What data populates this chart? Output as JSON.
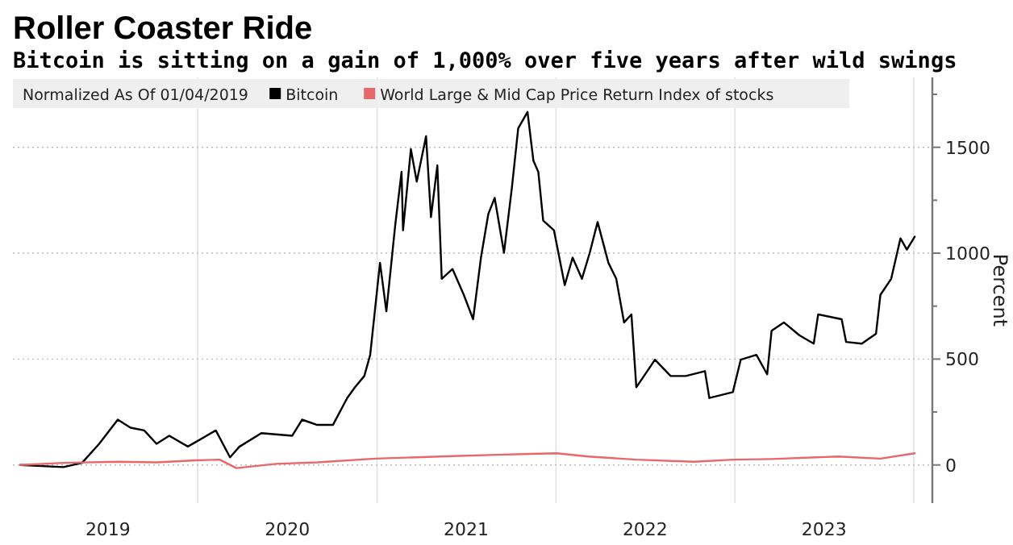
{
  "chart_data": {
    "type": "line",
    "title": "Roller Coaster Ride",
    "subtitle": "Bitcoin is sitting on a gain of 1,000% over five years after wild swings",
    "ylabel": "Percent",
    "legend_title": "Normalized As Of 01/04/2019",
    "legend": "top",
    "grid": true,
    "marker": "none",
    "line_style": "solid",
    "xlim": [
      "2018-12-20",
      "2024-02-08"
    ],
    "xticks": [
      {
        "value": "2019-07-02",
        "label": "2019"
      },
      {
        "value": "2020-07-02",
        "label": "2020"
      },
      {
        "value": "2021-07-02",
        "label": "2021"
      },
      {
        "value": "2022-07-02",
        "label": "2022"
      },
      {
        "value": "2023-07-02",
        "label": "2023"
      },
      {
        "value": "2020-01-01",
        "label": null
      },
      {
        "value": "2021-01-01",
        "label": null
      },
      {
        "value": "2022-01-01",
        "label": null
      },
      {
        "value": "2023-01-01",
        "label": null
      },
      {
        "value": "2024-01-01",
        "label": null
      }
    ],
    "ylim": [
      -180,
      1830
    ],
    "yticks": [
      0,
      500,
      1000,
      1500,
      {
        "value": 250,
        "label": null
      },
      {
        "value": 750,
        "label": null
      },
      {
        "value": 1250,
        "label": null
      },
      {
        "value": 1750,
        "label": null
      }
    ],
    "series": [
      {
        "name": "Bitcoin",
        "color": "#000000",
        "x": [
          "2019-01-04",
          "2019-04-02",
          "2019-05-10",
          "2019-06-14",
          "2019-07-22",
          "2019-08-17",
          "2019-09-14",
          "2019-10-09",
          "2019-11-04",
          "2019-12-12",
          "2020-02-07",
          "2020-03-07",
          "2020-03-26",
          "2020-05-10",
          "2020-07-12",
          "2020-08-01",
          "2020-09-01",
          "2020-10-03",
          "2020-11-01",
          "2020-11-17",
          "2020-12-06",
          "2020-12-18",
          "2021-01-07",
          "2021-01-20",
          "2021-02-07",
          "2021-02-20",
          "2021-02-23",
          "2021-03-11",
          "2021-03-23",
          "2021-04-11",
          "2021-04-21",
          "2021-05-04",
          "2021-05-13",
          "2021-06-04",
          "2021-06-27",
          "2021-07-16",
          "2021-08-01",
          "2021-08-16",
          "2021-08-29",
          "2021-09-17",
          "2021-10-03",
          "2021-10-16",
          "2021-11-04",
          "2021-11-16",
          "2021-11-26",
          "2021-12-06",
          "2021-12-28",
          "2022-01-19",
          "2022-02-04",
          "2022-02-23",
          "2022-03-11",
          "2022-03-27",
          "2022-04-18",
          "2022-05-04",
          "2022-05-20",
          "2022-06-04",
          "2022-06-14",
          "2022-07-13",
          "2022-07-22",
          "2022-08-23",
          "2022-09-23",
          "2022-11-01",
          "2022-11-10",
          "2022-12-28",
          "2023-01-13",
          "2023-02-14",
          "2023-03-08",
          "2023-03-17",
          "2023-04-11",
          "2023-05-13",
          "2023-06-11",
          "2023-06-20",
          "2023-08-07",
          "2023-08-16",
          "2023-09-17",
          "2023-10-16",
          "2023-10-25",
          "2023-11-16",
          "2023-12-05",
          "2023-12-18",
          "2024-01-03"
        ],
        "values": [
          0,
          -10,
          10,
          100,
          214,
          176,
          163,
          100,
          138,
          87,
          163,
          36,
          86,
          150,
          138,
          214,
          189,
          189,
          316,
          367,
          420,
          520,
          955,
          726,
          1131,
          1384,
          1108,
          1491,
          1338,
          1552,
          1170,
          1414,
          879,
          925,
          803,
          688,
          979,
          1185,
          1261,
          1002,
          1307,
          1590,
          1667,
          1437,
          1384,
          1154,
          1108,
          849,
          979,
          879,
          1002,
          1147,
          955,
          879,
          673,
          711,
          367,
          466,
          497,
          420,
          420,
          443,
          316,
          344,
          497,
          520,
          428,
          634,
          673,
          612,
          573,
          711,
          688,
          581,
          573,
          619,
          803,
          879,
          1070,
          1017,
          1078
        ]
      },
      {
        "name": "World Large & Mid Cap Price Return Index of stocks",
        "color": "#e8676b",
        "x": [
          "2019-01-04",
          "2019-04-02",
          "2019-07-22",
          "2019-10-09",
          "2019-12-28",
          "2020-02-15",
          "2020-03-20",
          "2020-06-08",
          "2020-09-01",
          "2020-12-28",
          "2021-06-04",
          "2021-09-01",
          "2021-11-10",
          "2022-01-03",
          "2022-03-08",
          "2022-06-14",
          "2022-10-10",
          "2022-12-28",
          "2023-03-17",
          "2023-07-31",
          "2023-10-25",
          "2024-01-03"
        ],
        "values": [
          0,
          10,
          15,
          12,
          22,
          25,
          -15,
          5,
          12,
          30,
          42,
          48,
          52,
          55,
          40,
          25,
          15,
          25,
          28,
          40,
          30,
          55
        ]
      }
    ]
  }
}
